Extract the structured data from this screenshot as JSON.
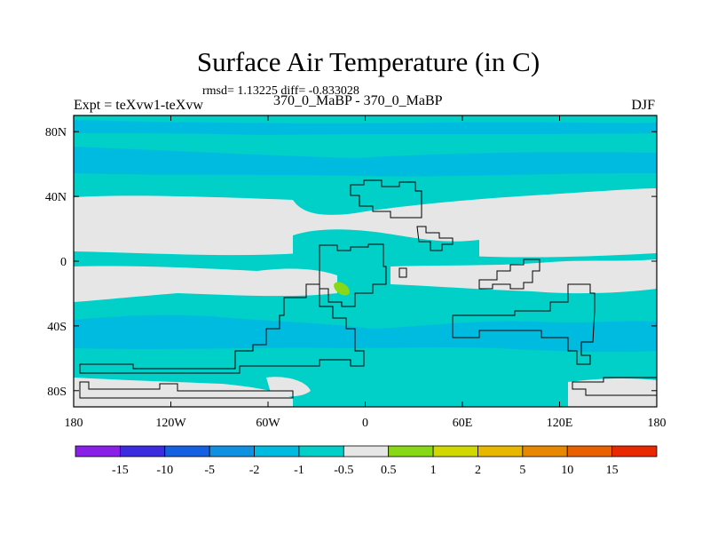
{
  "title": "Surface Air Temperature (in C)",
  "stats": "rmsd= 1.13225 diff= -0.833028",
  "left_string": "Expt = teXvw1-teXvw",
  "center_string": "370_0_MaBP - 370_0_MaBP",
  "right_string": "DJF",
  "map": {
    "projection": "cylindrical equidistant",
    "lon_range": [
      -180,
      180
    ],
    "lat_range": [
      -90,
      90
    ],
    "lon_ticks": [
      {
        "value": -180,
        "label": "180"
      },
      {
        "value": -120,
        "label": "120W"
      },
      {
        "value": -60,
        "label": "60W"
      },
      {
        "value": 0,
        "label": "0"
      },
      {
        "value": 60,
        "label": "60E"
      },
      {
        "value": 120,
        "label": "120E"
      },
      {
        "value": 180,
        "label": "180"
      }
    ],
    "lat_ticks": [
      {
        "value": 80,
        "label": "80N"
      },
      {
        "value": 40,
        "label": "40N"
      },
      {
        "value": 0,
        "label": "0"
      },
      {
        "value": -40,
        "label": "40S"
      },
      {
        "value": -80,
        "label": "80S"
      }
    ],
    "colors": {
      "ocean_cool": "#00CCCC",
      "cooler_band": "#00BBE0",
      "neutral": "#E6E6E6",
      "warm_patch": "#88D818",
      "coastline": "#000000"
    }
  },
  "colorbar": {
    "colors": [
      "#8820E8",
      "#3C2CE0",
      "#1460E0",
      "#1090E0",
      "#00BBE0",
      "#00D0C8",
      "#E6E6E6",
      "#88D818",
      "#D0D800",
      "#E8B800",
      "#E88800",
      "#E86000",
      "#E82800"
    ],
    "labels": [
      "-15",
      "-10",
      "-5",
      "-2",
      "-1",
      "-0.5",
      "0.5",
      "1",
      "2",
      "5",
      "10",
      "15"
    ]
  }
}
